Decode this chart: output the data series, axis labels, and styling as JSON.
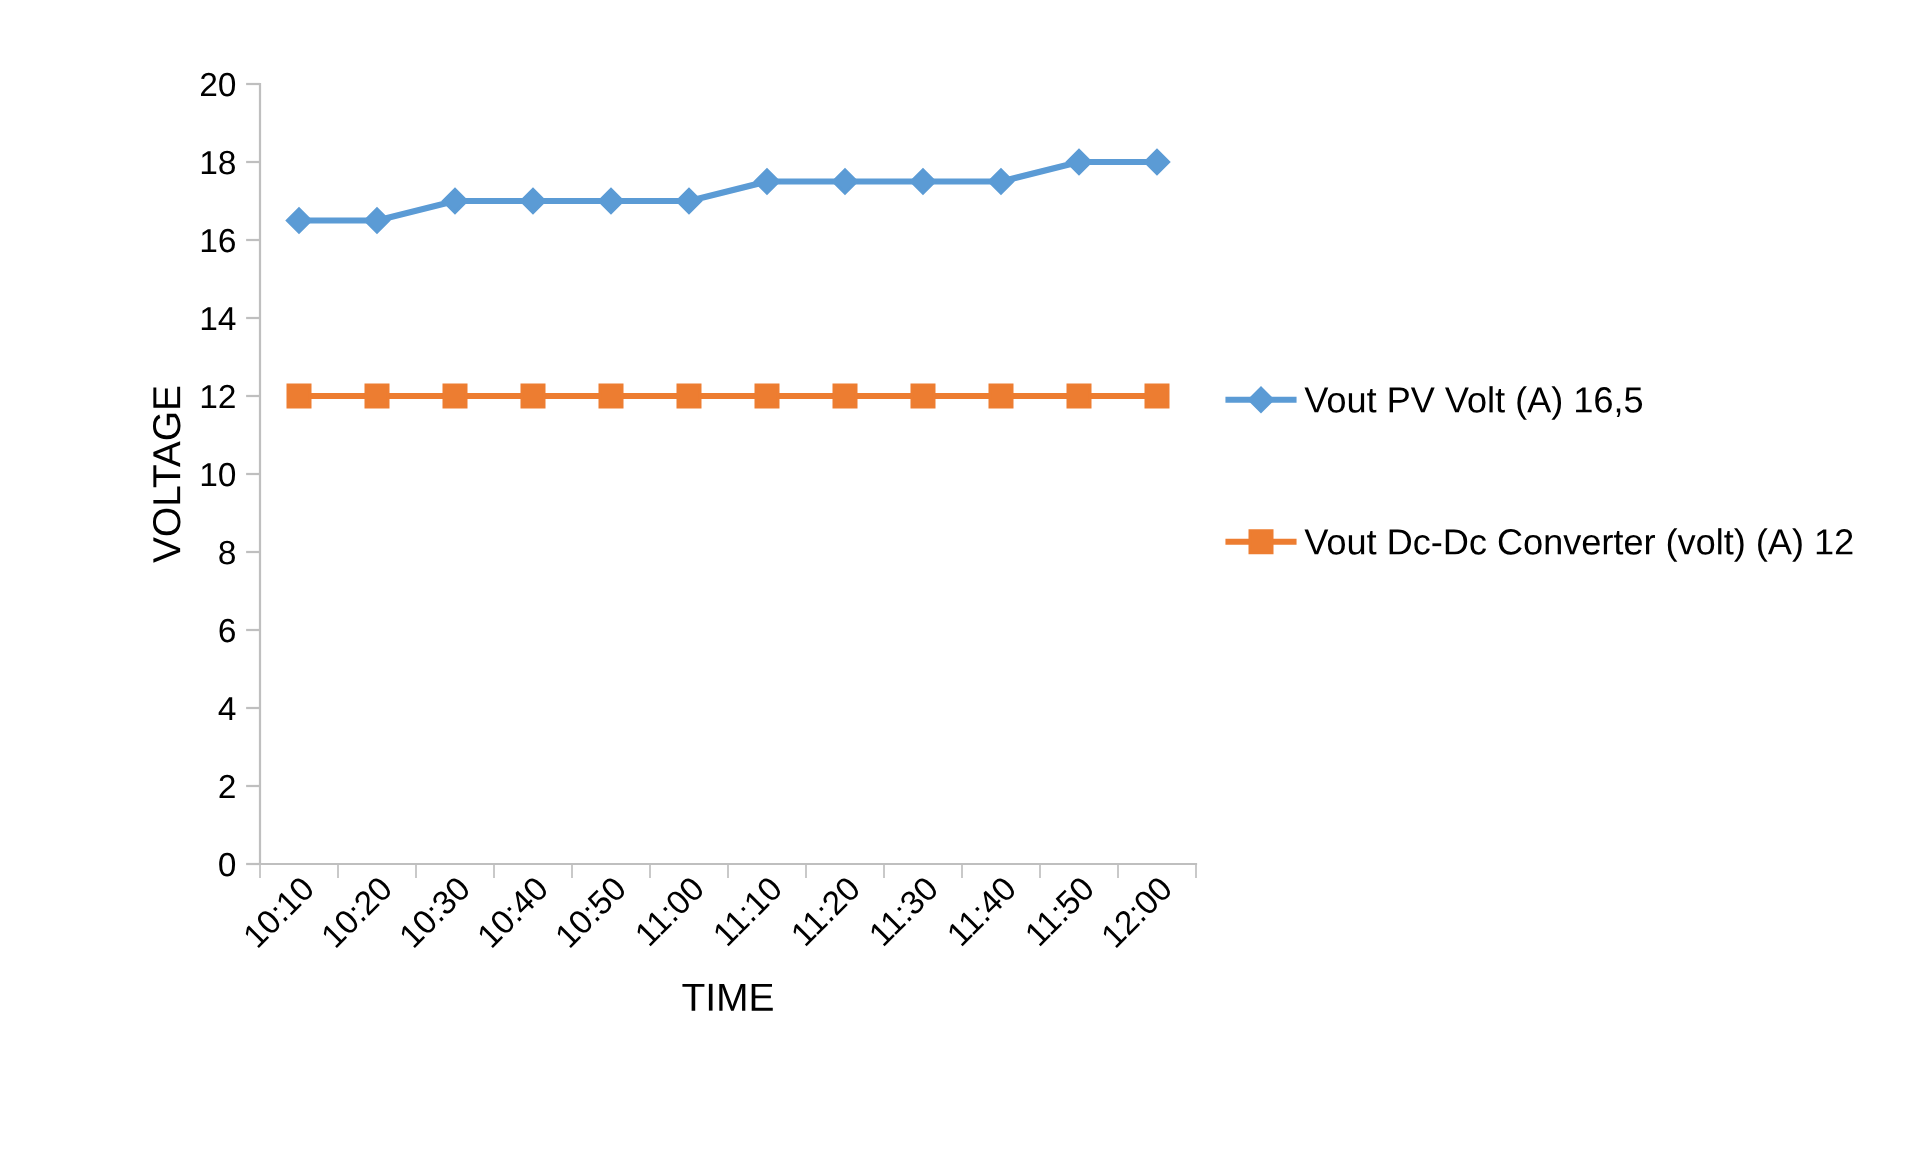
{
  "chart_data": {
    "type": "line",
    "xlabel": "TIME",
    "ylabel": "VOLTAGE",
    "categories": [
      "10:10",
      "10:20",
      "10:30",
      "10:40",
      "10:50",
      "11:00",
      "11:10",
      "11:20",
      "11:30",
      "11:40",
      "11:50",
      "12:00"
    ],
    "series": [
      {
        "name": "Vout PV Volt (A) 16,5",
        "color": "#5b9bd5",
        "marker": "diamond",
        "values": [
          16.5,
          16.5,
          17,
          17,
          17,
          17,
          17.5,
          17.5,
          17.5,
          17.5,
          18,
          18
        ]
      },
      {
        "name": "Vout Dc-Dc Converter (volt) (A) 12",
        "color": "#ed7d31",
        "marker": "square",
        "values": [
          12,
          12,
          12,
          12,
          12,
          12,
          12,
          12,
          12,
          12,
          12,
          12
        ]
      }
    ],
    "ylim": [
      0,
      20
    ],
    "yticks": [
      0,
      2,
      4,
      6,
      8,
      10,
      12,
      14,
      16,
      18,
      20
    ],
    "grid": false,
    "legend": "right",
    "line_style": "solid"
  }
}
